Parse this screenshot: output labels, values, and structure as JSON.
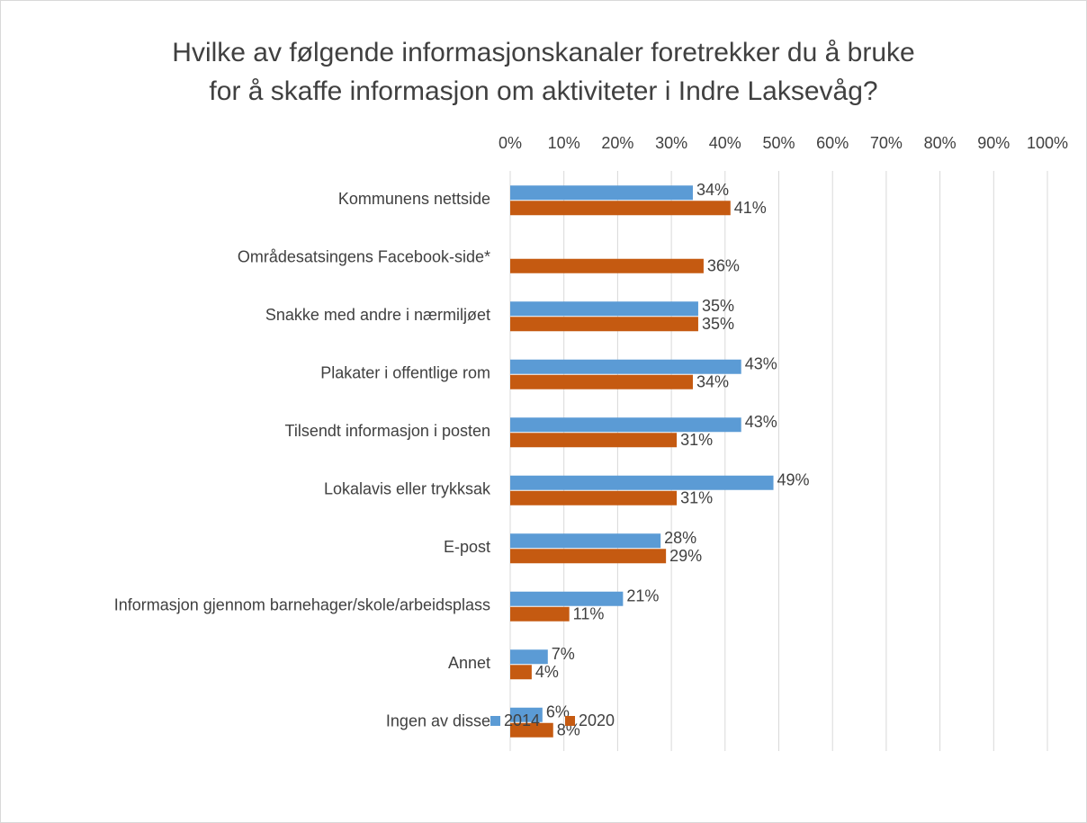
{
  "chart_data": {
    "type": "hbar",
    "title": [
      "Hvilke av følgende informasjonskanaler foretrekker du å bruke",
      "for å skaffe informasjon om aktiviteter i Indre Laksevåg?"
    ],
    "categories": [
      "Kommunens nettside",
      "Områdesatsingens Facebook-side*",
      "Snakke med andre i nærmiljøet",
      "Plakater i offentlige rom",
      "Tilsendt informasjon i posten",
      "Lokalavis eller trykksak",
      "E-post",
      "Informasjon gjennom barnehager/skole/arbeidsplass",
      "Annet",
      "Ingen av disse"
    ],
    "series": [
      {
        "name": "2014",
        "color": "#5b9bd5",
        "values": [
          34,
          null,
          35,
          43,
          43,
          49,
          28,
          21,
          7,
          6
        ],
        "value_labels": [
          "34%",
          null,
          "35%",
          "43%",
          "43%",
          "49%",
          "28%",
          "21%",
          "7%",
          "6%"
        ]
      },
      {
        "name": "2020",
        "color": "#c55a11",
        "values": [
          41,
          36,
          35,
          34,
          31,
          31,
          29,
          11,
          4,
          8
        ],
        "value_labels": [
          "41%",
          "36%",
          "35%",
          "34%",
          "31%",
          "31%",
          "29%",
          "11%",
          "4%",
          "8%"
        ]
      }
    ],
    "xlim": [
      0,
      100
    ],
    "xticks": [
      {
        "value": 0,
        "label": "0%"
      },
      {
        "value": 10,
        "label": "10%"
      },
      {
        "value": 20,
        "label": "20%"
      },
      {
        "value": 30,
        "label": "30%"
      },
      {
        "value": 40,
        "label": "40%"
      },
      {
        "value": 50,
        "label": "50%"
      },
      {
        "value": 60,
        "label": "60%"
      },
      {
        "value": 70,
        "label": "70%"
      },
      {
        "value": 80,
        "label": "80%"
      },
      {
        "value": 90,
        "label": "90%"
      },
      {
        "value": 100,
        "label": "100%"
      }
    ],
    "grid": true,
    "legend": "bottom"
  }
}
